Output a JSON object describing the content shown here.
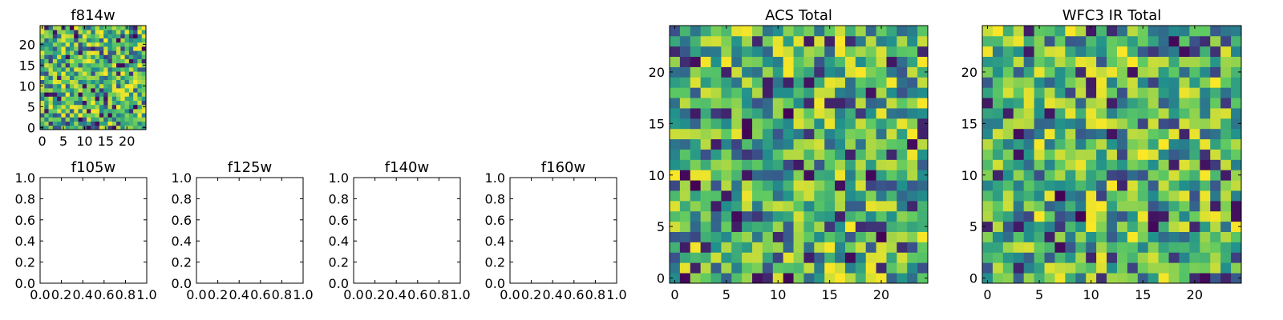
{
  "chart_data": [
    {
      "type": "heatmap",
      "title": "f814w",
      "grid": false,
      "xlim": [
        -0.5,
        24.5
      ],
      "ylim": [
        -0.5,
        24.5
      ],
      "xticks": [
        "0",
        "5",
        "10",
        "15",
        "20"
      ],
      "yticks": [
        "0",
        "5",
        "10",
        "15",
        "20"
      ],
      "xtick_values": [
        0,
        5,
        10,
        15,
        20
      ],
      "ytick_values": [
        0,
        5,
        10,
        15,
        20
      ],
      "colormap": [
        "#440154",
        "#3b528b",
        "#21918c",
        "#5ec962",
        "#fde725"
      ],
      "image": {
        "rows": 25,
        "cols": 25,
        "seed": 11
      }
    },
    {
      "type": "heatmap",
      "title": "f105w",
      "grid": false,
      "xlim": [
        0,
        1
      ],
      "ylim": [
        0,
        1
      ],
      "xticks": [
        "0.0",
        "0.2",
        "0.4",
        "0.6",
        "0.8",
        "1.0"
      ],
      "yticks": [
        "0.0",
        "0.2",
        "0.4",
        "0.6",
        "0.8",
        "1.0"
      ],
      "xtick_values": [
        0,
        0.2,
        0.4,
        0.6,
        0.8,
        1.0
      ],
      "ytick_values": [
        0,
        0.2,
        0.4,
        0.6,
        0.8,
        1.0
      ],
      "empty": true
    },
    {
      "type": "heatmap",
      "title": "f125w",
      "grid": false,
      "xlim": [
        0,
        1
      ],
      "ylim": [
        0,
        1
      ],
      "xticks": [
        "0.0",
        "0.2",
        "0.4",
        "0.6",
        "0.8",
        "1.0"
      ],
      "yticks": [
        "0.0",
        "0.2",
        "0.4",
        "0.6",
        "0.8",
        "1.0"
      ],
      "xtick_values": [
        0,
        0.2,
        0.4,
        0.6,
        0.8,
        1.0
      ],
      "ytick_values": [
        0,
        0.2,
        0.4,
        0.6,
        0.8,
        1.0
      ],
      "empty": true
    },
    {
      "type": "heatmap",
      "title": "f140w",
      "grid": false,
      "xlim": [
        0,
        1
      ],
      "ylim": [
        0,
        1
      ],
      "xticks": [
        "0.0",
        "0.2",
        "0.4",
        "0.6",
        "0.8",
        "1.0"
      ],
      "yticks": [
        "0.0",
        "0.2",
        "0.4",
        "0.6",
        "0.8",
        "1.0"
      ],
      "xtick_values": [
        0,
        0.2,
        0.4,
        0.6,
        0.8,
        1.0
      ],
      "ytick_values": [
        0,
        0.2,
        0.4,
        0.6,
        0.8,
        1.0
      ],
      "empty": true
    },
    {
      "type": "heatmap",
      "title": "f160w",
      "grid": false,
      "xlim": [
        0,
        1
      ],
      "ylim": [
        0,
        1
      ],
      "xticks": [
        "0.0",
        "0.2",
        "0.4",
        "0.6",
        "0.8",
        "1.0"
      ],
      "yticks": [
        "0.0",
        "0.2",
        "0.4",
        "0.6",
        "0.8",
        "1.0"
      ],
      "xtick_values": [
        0,
        0.2,
        0.4,
        0.6,
        0.8,
        1.0
      ],
      "ytick_values": [
        0,
        0.2,
        0.4,
        0.6,
        0.8,
        1.0
      ],
      "empty": true
    },
    {
      "type": "heatmap",
      "title": "ACS Total",
      "grid": false,
      "xlim": [
        -0.5,
        24.5
      ],
      "ylim": [
        -0.5,
        24.5
      ],
      "xticks": [
        "0",
        "5",
        "10",
        "15",
        "20"
      ],
      "yticks": [
        "0",
        "5",
        "10",
        "15",
        "20"
      ],
      "xtick_values": [
        0,
        5,
        10,
        15,
        20
      ],
      "ytick_values": [
        0,
        5,
        10,
        15,
        20
      ],
      "colormap": [
        "#440154",
        "#3b528b",
        "#21918c",
        "#5ec962",
        "#fde725"
      ],
      "image": {
        "rows": 25,
        "cols": 25,
        "seed": 47
      }
    },
    {
      "type": "heatmap",
      "title": "WFC3 IR Total",
      "grid": false,
      "xlim": [
        -0.5,
        24.5
      ],
      "ylim": [
        -0.5,
        24.5
      ],
      "xticks": [
        "0",
        "5",
        "10",
        "15",
        "20"
      ],
      "yticks": [
        "0",
        "5",
        "10",
        "15",
        "20"
      ],
      "xtick_values": [
        0,
        5,
        10,
        15,
        20
      ],
      "ytick_values": [
        0,
        5,
        10,
        15,
        20
      ],
      "colormap": [
        "#440154",
        "#3b528b",
        "#21918c",
        "#5ec962",
        "#fde725"
      ],
      "image": {
        "rows": 25,
        "cols": 25,
        "seed": 83
      }
    }
  ]
}
